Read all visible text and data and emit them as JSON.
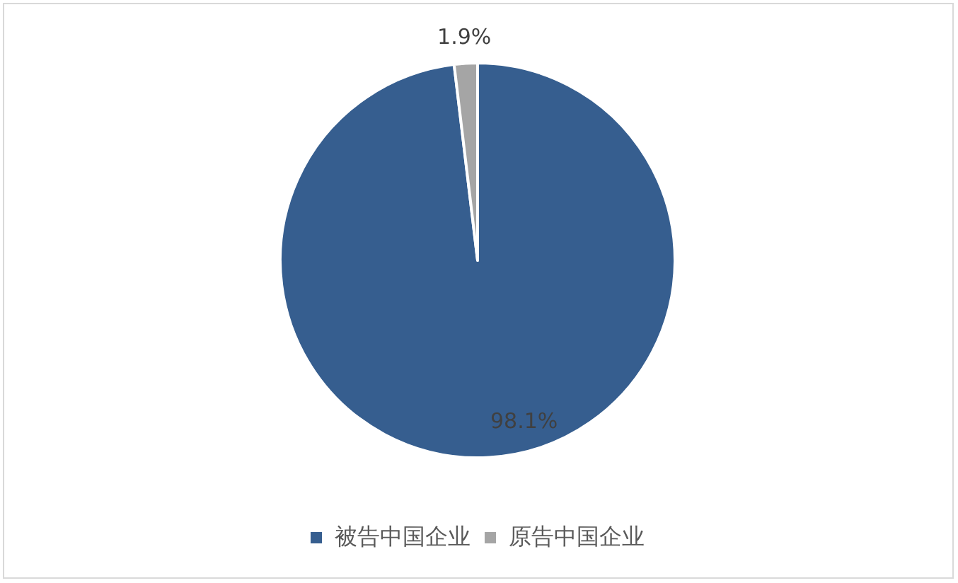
{
  "chart_data": {
    "type": "pie",
    "categories": [
      "被告中国企业",
      "原告中国企业"
    ],
    "values": [
      98.1,
      1.9
    ],
    "colors": [
      "#365e8f",
      "#a5a5a5"
    ],
    "value_labels": [
      "98.1%",
      "1.9%"
    ],
    "legend": "bottom"
  }
}
